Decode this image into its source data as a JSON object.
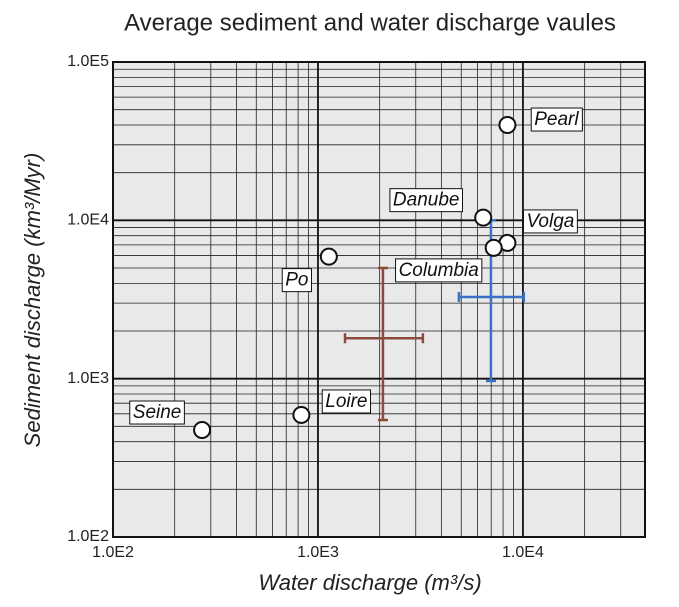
{
  "chart_data": {
    "type": "scatter",
    "title": "Average sediment and water discharge vaules",
    "x_label": "Water discharge (m³/s)",
    "y_label": "Sediment discharge (km³/Myr)",
    "xscale": "log",
    "yscale": "log",
    "grid": true,
    "minor_grid": true,
    "xlim": [
      100,
      39400
    ],
    "ylim": [
      100,
      100000
    ],
    "xticks": [
      {
        "value": 100,
        "label": "1.0E2"
      },
      {
        "value": 1000,
        "label": "1.0E3"
      },
      {
        "value": 10000,
        "label": "1.0E4"
      }
    ],
    "yticks": [
      {
        "value": 100,
        "label": "1.0E2"
      },
      {
        "value": 1000,
        "label": "1.0E3"
      },
      {
        "value": 10000,
        "label": "1.0E4"
      },
      {
        "value": 100000,
        "label": "1.0E5"
      }
    ],
    "points": {
      "names": [
        "Pearl",
        "Danube",
        "Volga",
        "Columbia",
        "Po",
        "Loire",
        "Seine"
      ],
      "x": [
        8400,
        6400,
        8400,
        7200,
        1130,
        830,
        272
      ],
      "y": [
        40000,
        10400,
        7200,
        6700,
        5900,
        590,
        474
      ]
    },
    "error_bars": [
      {
        "color": "#8b4a3c",
        "x": 2075,
        "y": 1800,
        "x_range": [
          1355,
          3250
        ],
        "y_range": [
          548,
          5000
        ]
      },
      {
        "color": "#3a72c4",
        "x": 6980,
        "y": 3280,
        "x_range": [
          4870,
          10100
        ],
        "y_range": [
          967,
          10000
        ]
      }
    ]
  }
}
